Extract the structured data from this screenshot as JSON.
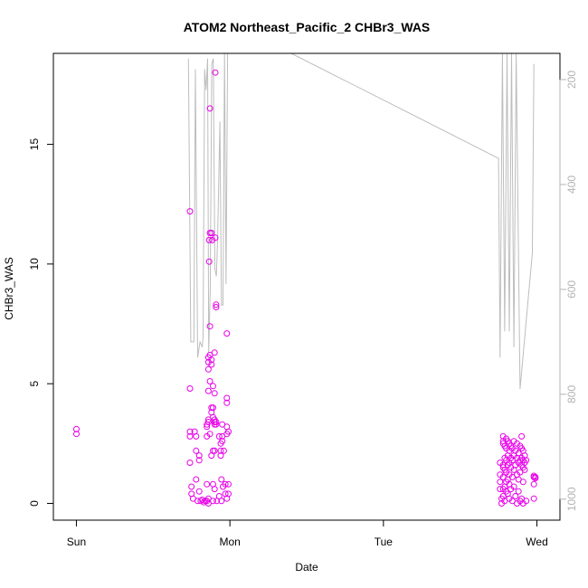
{
  "chart_data": {
    "type": "scatter",
    "title": "ATOM2 Northeast_Pacific_2 CHBr3_WAS",
    "xlabel": "Date",
    "ylabel": "CHBr3_WAS",
    "x_unit": "days since Sunday 00:00",
    "x_ticks": [
      {
        "value": 0,
        "label": "Sun"
      },
      {
        "value": 1,
        "label": "Mon"
      },
      {
        "value": 2,
        "label": "Tue"
      },
      {
        "value": 3,
        "label": "Wed"
      }
    ],
    "xlim": [
      -0.15,
      3.15
    ],
    "ylim": [
      -0.7,
      18.8
    ],
    "y_ticks": [
      0,
      5,
      10,
      15
    ],
    "y2_ticks": [
      200,
      400,
      600,
      800,
      1000
    ],
    "y2lim_top_to_bottom": [
      150,
      1040
    ],
    "colors": {
      "points": "#e800e8",
      "line": "#bdbdbd",
      "axis": "#000000",
      "right_axis": "#b3b3b3"
    },
    "series": [
      {
        "kind": "points",
        "points": [
          [
            0.0,
            3.1
          ],
          [
            0.0,
            2.9
          ],
          [
            0.74,
            12.2
          ],
          [
            0.74,
            4.8
          ],
          [
            0.74,
            3.0
          ],
          [
            0.74,
            2.8
          ],
          [
            0.74,
            1.7
          ],
          [
            0.75,
            0.7
          ],
          [
            0.75,
            0.4
          ],
          [
            0.76,
            0.2
          ],
          [
            0.77,
            3.0
          ],
          [
            0.78,
            2.8
          ],
          [
            0.78,
            2.2
          ],
          [
            0.78,
            1.0
          ],
          [
            0.79,
            0.1
          ],
          [
            0.8,
            2.0
          ],
          [
            0.8,
            1.8
          ],
          [
            0.8,
            0.5
          ],
          [
            0.81,
            0.1
          ],
          [
            0.82,
            0.15
          ],
          [
            0.83,
            0.05
          ],
          [
            0.84,
            0.1
          ],
          [
            0.85,
            3.3
          ],
          [
            0.85,
            3.2
          ],
          [
            0.85,
            2.8
          ],
          [
            0.85,
            0.8
          ],
          [
            0.85,
            0.1
          ],
          [
            0.86,
            6.1
          ],
          [
            0.86,
            5.9
          ],
          [
            0.86,
            5.6
          ],
          [
            0.86,
            4.7
          ],
          [
            0.86,
            3.5
          ],
          [
            0.86,
            3.4
          ],
          [
            0.86,
            0.2
          ],
          [
            0.86,
            0.0
          ],
          [
            0.865,
            11.0
          ],
          [
            0.865,
            10.1
          ],
          [
            0.87,
            16.5
          ],
          [
            0.87,
            11.3
          ],
          [
            0.87,
            7.4
          ],
          [
            0.87,
            6.2
          ],
          [
            0.87,
            5.1
          ],
          [
            0.87,
            2.9
          ],
          [
            0.88,
            11.3
          ],
          [
            0.88,
            6.0
          ],
          [
            0.88,
            5.8
          ],
          [
            0.88,
            4.0
          ],
          [
            0.88,
            3.8
          ],
          [
            0.88,
            2.0
          ],
          [
            0.885,
            11.0
          ],
          [
            0.89,
            4.9
          ],
          [
            0.89,
            4.0
          ],
          [
            0.89,
            3.6
          ],
          [
            0.89,
            2.2
          ],
          [
            0.89,
            0.8
          ],
          [
            0.89,
            0.1
          ],
          [
            0.9,
            6.3
          ],
          [
            0.9,
            4.6
          ],
          [
            0.9,
            3.5
          ],
          [
            0.9,
            3.4
          ],
          [
            0.9,
            3.3
          ],
          [
            0.9,
            2.2
          ],
          [
            0.9,
            0.6
          ],
          [
            0.905,
            18.0
          ],
          [
            0.905,
            11.1
          ],
          [
            0.91,
            8.3
          ],
          [
            0.91,
            8.2
          ],
          [
            0.91,
            3.4
          ],
          [
            0.91,
            3.3
          ],
          [
            0.915,
            0.1
          ],
          [
            0.93,
            2.8
          ],
          [
            0.93,
            0.3
          ],
          [
            0.94,
            2.5
          ],
          [
            0.94,
            2.2
          ],
          [
            0.94,
            2.0
          ],
          [
            0.945,
            1.0
          ],
          [
            0.945,
            0.1
          ],
          [
            0.95,
            3.3
          ],
          [
            0.95,
            2.8
          ],
          [
            0.95,
            2.6
          ],
          [
            0.955,
            0.7
          ],
          [
            0.96,
            2.2
          ],
          [
            0.97,
            0.8
          ],
          [
            0.97,
            0.4
          ],
          [
            0.98,
            7.1
          ],
          [
            0.98,
            4.4
          ],
          [
            0.98,
            4.2
          ],
          [
            0.98,
            3.2
          ],
          [
            0.98,
            2.9
          ],
          [
            0.98,
            0.2
          ],
          [
            0.99,
            3.0
          ],
          [
            0.99,
            0.4
          ],
          [
            0.99,
            0.8
          ],
          [
            2.76,
            1.7
          ],
          [
            2.76,
            1.2
          ],
          [
            2.76,
            0.9
          ],
          [
            2.76,
            0.6
          ],
          [
            2.77,
            0.2
          ],
          [
            2.77,
            0.0
          ],
          [
            2.78,
            2.8
          ],
          [
            2.78,
            2.6
          ],
          [
            2.78,
            2.5
          ],
          [
            2.78,
            1.6
          ],
          [
            2.78,
            1.5
          ],
          [
            2.78,
            1.1
          ],
          [
            2.78,
            0.6
          ],
          [
            2.78,
            0.3
          ],
          [
            2.79,
            2.4
          ],
          [
            2.79,
            1.9
          ],
          [
            2.79,
            1.4
          ],
          [
            2.79,
            0.7
          ],
          [
            2.79,
            0.1
          ],
          [
            2.8,
            2.7
          ],
          [
            2.8,
            2.3
          ],
          [
            2.8,
            1.8
          ],
          [
            2.8,
            1.3
          ],
          [
            2.8,
            0.9
          ],
          [
            2.8,
            0.5
          ],
          [
            2.81,
            2.6
          ],
          [
            2.81,
            2.0
          ],
          [
            2.81,
            1.6
          ],
          [
            2.81,
            1.0
          ],
          [
            2.81,
            0.4
          ],
          [
            2.82,
            2.5
          ],
          [
            2.82,
            2.2
          ],
          [
            2.82,
            1.7
          ],
          [
            2.82,
            1.2
          ],
          [
            2.82,
            0.8
          ],
          [
            2.82,
            0.2
          ],
          [
            2.83,
            2.4
          ],
          [
            2.83,
            1.9
          ],
          [
            2.83,
            1.5
          ],
          [
            2.83,
            0.6
          ],
          [
            2.84,
            2.3
          ],
          [
            2.84,
            1.8
          ],
          [
            2.84,
            1.1
          ],
          [
            2.84,
            0.1
          ],
          [
            2.85,
            2.6
          ],
          [
            2.85,
            2.0
          ],
          [
            2.85,
            1.4
          ],
          [
            2.85,
            0.7
          ],
          [
            2.86,
            2.2
          ],
          [
            2.86,
            1.6
          ],
          [
            2.86,
            0.3
          ],
          [
            2.87,
            2.5
          ],
          [
            2.87,
            1.9
          ],
          [
            2.87,
            1.2
          ],
          [
            2.87,
            0.0
          ],
          [
            2.88,
            2.1
          ],
          [
            2.88,
            1.7
          ],
          [
            2.88,
            1.0
          ],
          [
            2.88,
            0.5
          ],
          [
            2.89,
            2.4
          ],
          [
            2.89,
            1.8
          ],
          [
            2.89,
            1.3
          ],
          [
            2.89,
            0.1
          ],
          [
            2.9,
            2.8
          ],
          [
            2.9,
            2.3
          ],
          [
            2.9,
            1.9
          ],
          [
            2.9,
            1.6
          ],
          [
            2.9,
            0.2
          ],
          [
            2.91,
            2.2
          ],
          [
            2.91,
            1.8
          ],
          [
            2.91,
            1.5
          ],
          [
            2.91,
            0.9
          ],
          [
            2.91,
            0.0
          ],
          [
            2.92,
            2.0
          ],
          [
            2.92,
            1.7
          ],
          [
            2.92,
            1.4
          ],
          [
            2.93,
            1.8
          ],
          [
            2.93,
            0.1
          ],
          [
            2.98,
            1.15
          ],
          [
            2.98,
            1.1
          ],
          [
            2.98,
            0.8
          ],
          [
            2.98,
            0.2
          ],
          [
            2.99,
            1.1
          ],
          [
            2.99,
            1.05
          ]
        ]
      },
      {
        "kind": "line",
        "axis": "right",
        "points": [
          [
            0.73,
            160
          ],
          [
            0.745,
            700
          ],
          [
            0.765,
            700
          ],
          [
            0.775,
            180
          ],
          [
            0.79,
            730
          ],
          [
            0.805,
            700
          ],
          [
            0.82,
            710
          ],
          [
            0.825,
            690
          ],
          [
            0.835,
            180
          ],
          [
            0.845,
            220
          ],
          [
            0.855,
            160
          ],
          [
            0.862,
            720
          ],
          [
            0.872,
            600
          ],
          [
            0.882,
            170
          ],
          [
            0.892,
            160
          ],
          [
            0.902,
            560
          ],
          [
            0.912,
            575
          ],
          [
            0.92,
            500
          ],
          [
            0.935,
            280
          ],
          [
            0.945,
            630
          ],
          [
            0.955,
            630
          ],
          [
            0.965,
            150
          ],
          [
            0.975,
            590
          ],
          [
            0.985,
            150
          ],
          [
            1.4,
            150
          ],
          [
            2.75,
            350
          ],
          [
            2.76,
            730
          ],
          [
            2.775,
            150
          ],
          [
            2.79,
            680
          ],
          [
            2.805,
            150
          ],
          [
            2.82,
            680
          ],
          [
            2.835,
            150
          ],
          [
            2.85,
            710
          ],
          [
            2.865,
            150
          ],
          [
            2.89,
            790
          ],
          [
            2.97,
            530
          ],
          [
            2.98,
            170
          ]
        ]
      }
    ]
  }
}
